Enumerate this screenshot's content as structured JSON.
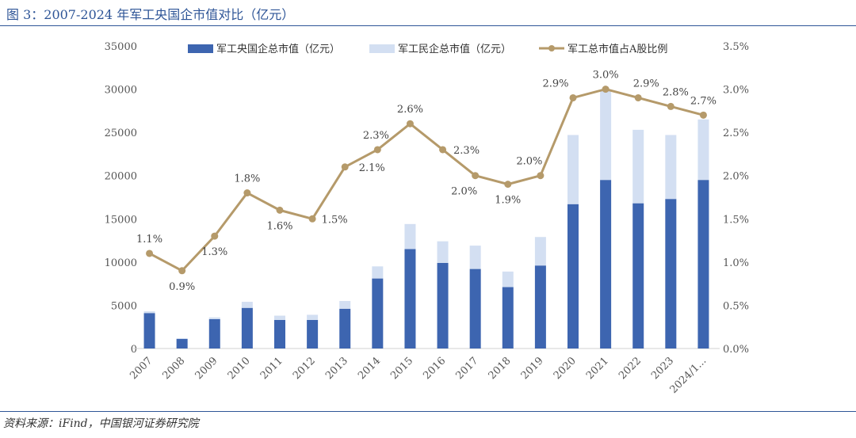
{
  "title": "图 3：2007-2024 年军工央国企市值对比（亿元）",
  "source": "资料来源：iFind，中国银河证券研究院",
  "colors": {
    "soe": "#3d65b0",
    "private": "#d3dff2",
    "line": "#b59a6a",
    "title": "#2e5597"
  },
  "chart_data": {
    "type": "bar",
    "stacked": true,
    "categories": [
      "2007",
      "2008",
      "2009",
      "2010",
      "2011",
      "2012",
      "2013",
      "2014",
      "2015",
      "2016",
      "2017",
      "2018",
      "2019",
      "2020",
      "2021",
      "2022",
      "2023",
      "2024/1..."
    ],
    "series": [
      {
        "name": "军工央国企总市值（亿元）",
        "type": "bar",
        "axis": "left",
        "values": [
          4100,
          1100,
          3400,
          4700,
          3300,
          3300,
          4600,
          8100,
          11500,
          9900,
          9200,
          7100,
          9600,
          16700,
          19500,
          16800,
          17300,
          19500
        ]
      },
      {
        "name": "军工民企总市值（亿元）",
        "type": "bar",
        "axis": "left",
        "values": [
          200,
          100,
          200,
          700,
          500,
          600,
          900,
          1400,
          2900,
          2500,
          2700,
          1800,
          3300,
          8000,
          10300,
          8500,
          7400,
          7000
        ]
      },
      {
        "name": "军工总市值占A股比例",
        "type": "line",
        "axis": "right",
        "values": [
          1.1,
          0.9,
          1.3,
          1.8,
          1.6,
          1.5,
          2.1,
          2.3,
          2.6,
          2.3,
          2.0,
          1.9,
          2.0,
          2.9,
          3.0,
          2.9,
          2.8,
          2.7
        ],
        "labels": [
          "1.1%",
          "0.9%",
          "1.3%",
          "1.8%",
          "1.6%",
          "1.5%",
          "2.1%",
          "2.3%",
          "2.6%",
          "2.3%",
          "2.0%",
          "1.9%",
          "2.0%",
          "2.9%",
          "3.0%",
          "2.9%",
          "2.8%",
          "2.7%"
        ]
      }
    ],
    "y_left": {
      "min": 0,
      "max": 35000,
      "ticks": [
        "0",
        "5000",
        "10000",
        "15000",
        "20000",
        "25000",
        "30000",
        "35000"
      ]
    },
    "y_right": {
      "min": 0,
      "max": 3.5,
      "ticks": [
        "0.0%",
        "0.5%",
        "1.0%",
        "1.5%",
        "2.0%",
        "2.5%",
        "3.0%",
        "3.5%"
      ]
    },
    "legend_position": "top"
  }
}
